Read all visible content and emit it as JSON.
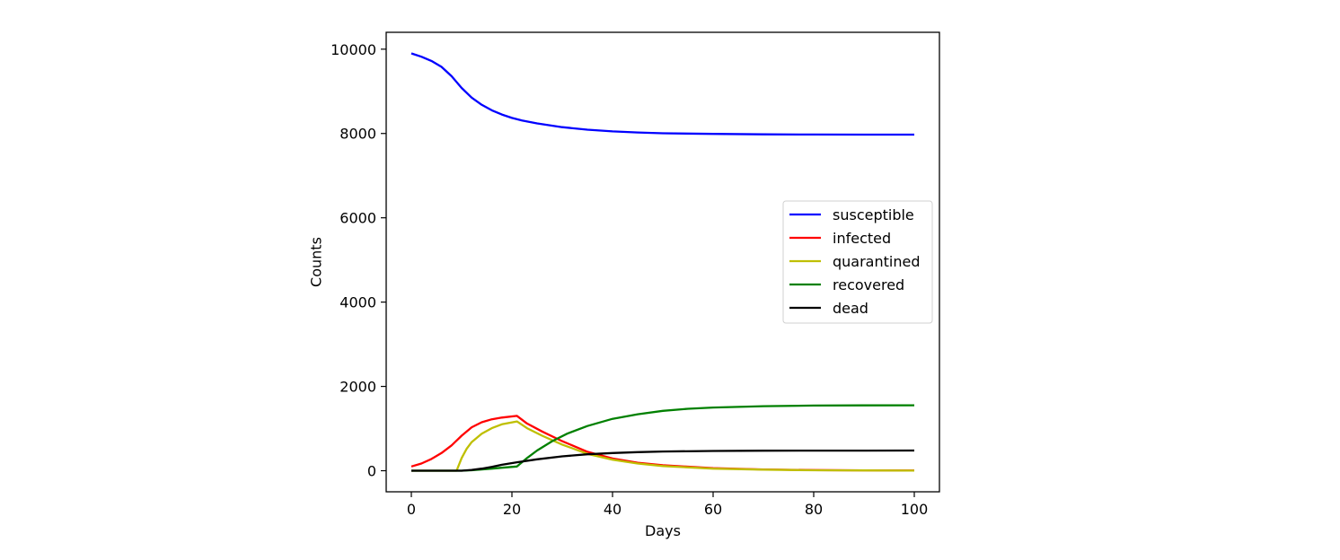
{
  "chart_data": {
    "type": "line",
    "title": "",
    "xlabel": "Days",
    "ylabel": "Counts",
    "xlim": [
      -5,
      105
    ],
    "ylim": [
      -500,
      10400
    ],
    "xticks": [
      0,
      20,
      40,
      60,
      80,
      100
    ],
    "yticks": [
      0,
      2000,
      4000,
      6000,
      8000,
      10000
    ],
    "grid": false,
    "legend_position": "center-right",
    "series": [
      {
        "name": "susceptible",
        "color": "#0000ff",
        "x": [
          0,
          2,
          4,
          6,
          8,
          10,
          12,
          14,
          16,
          18,
          20,
          22,
          25,
          30,
          35,
          40,
          45,
          50,
          60,
          70,
          80,
          90,
          100
        ],
        "y": [
          9900,
          9820,
          9720,
          9580,
          9360,
          9080,
          8850,
          8680,
          8550,
          8450,
          8370,
          8310,
          8240,
          8150,
          8090,
          8050,
          8025,
          8005,
          7990,
          7980,
          7975,
          7973,
          7972
        ]
      },
      {
        "name": "infected",
        "color": "#ff0000",
        "x": [
          0,
          2,
          4,
          6,
          8,
          10,
          12,
          14,
          16,
          18,
          21,
          23,
          26,
          30,
          35,
          40,
          45,
          50,
          60,
          70,
          80,
          90,
          100
        ],
        "y": [
          100,
          170,
          280,
          420,
          600,
          830,
          1030,
          1150,
          1220,
          1260,
          1300,
          1120,
          930,
          700,
          450,
          290,
          190,
          130,
          60,
          30,
          15,
          8,
          5
        ]
      },
      {
        "name": "quarantined",
        "color": "#bfbf00",
        "x": [
          0,
          9,
          10,
          11,
          12,
          14,
          16,
          18,
          21,
          23,
          26,
          30,
          35,
          40,
          45,
          50,
          60,
          70,
          80,
          90,
          100
        ],
        "y": [
          0,
          0,
          300,
          520,
          680,
          880,
          1010,
          1100,
          1170,
          1010,
          830,
          620,
          400,
          260,
          170,
          110,
          50,
          25,
          12,
          6,
          3
        ]
      },
      {
        "name": "recovered",
        "color": "#008000",
        "x": [
          0,
          10,
          12,
          14,
          16,
          18,
          21,
          23,
          25,
          28,
          31,
          35,
          40,
          45,
          50,
          55,
          60,
          70,
          80,
          90,
          100
        ],
        "y": [
          0,
          0,
          10,
          30,
          50,
          70,
          100,
          300,
          480,
          700,
          880,
          1060,
          1230,
          1340,
          1420,
          1470,
          1500,
          1530,
          1545,
          1550,
          1553
        ]
      },
      {
        "name": "dead",
        "color": "#000000",
        "x": [
          0,
          10,
          12,
          14,
          16,
          18,
          21,
          25,
          30,
          35,
          40,
          45,
          50,
          60,
          70,
          80,
          90,
          100
        ],
        "y": [
          0,
          0,
          20,
          50,
          90,
          140,
          200,
          270,
          340,
          390,
          420,
          440,
          455,
          468,
          474,
          477,
          478,
          479
        ]
      }
    ]
  }
}
